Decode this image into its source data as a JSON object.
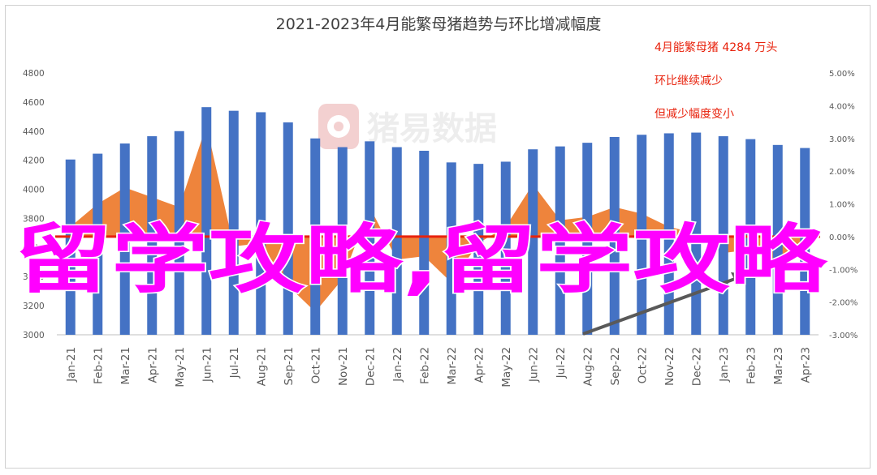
{
  "chart_data": {
    "type": "bar",
    "title": "2021-2023年4月能繁母猪趋势与环比增减幅度",
    "categories": [
      "Jan-21",
      "Feb-21",
      "Mar-21",
      "Apr-21",
      "May-21",
      "Jun-21",
      "Jul-21",
      "Aug-21",
      "Sep-21",
      "Oct-21",
      "Nov-21",
      "Dec-21",
      "Jan-22",
      "Feb-22",
      "Mar-22",
      "Apr-22",
      "May-22",
      "Jun-22",
      "Jul-22",
      "Aug-22",
      "Sep-22",
      "Oct-22",
      "Nov-22",
      "Dec-22",
      "Jan-23",
      "Feb-23",
      "Mar-23",
      "Apr-23"
    ],
    "series": [
      {
        "values": [
          4205,
          4245,
          4315,
          4365,
          4400,
          4565,
          4540,
          4530,
          4460,
          4350,
          4290,
          4330,
          4290,
          4265,
          4185,
          4175,
          4190,
          4275,
          4295,
          4320,
          4360,
          4375,
          4385,
          4390,
          4365,
          4345,
          4305,
          4284
        ],
        "axis": "left",
        "kind": "bar",
        "color": "#4472c4"
      },
      {
        "values": [
          0.3,
          1.0,
          1.5,
          1.2,
          0.9,
          3.4,
          -0.3,
          -0.2,
          -1.5,
          -2.3,
          -1.3,
          0.9,
          -0.7,
          -0.6,
          -1.4,
          -0.2,
          0.3,
          1.6,
          0.5,
          0.6,
          0.9,
          0.7,
          0.3,
          0.1,
          -0.5,
          -0.4,
          -0.9,
          -0.4
        ],
        "axis": "right",
        "kind": "area",
        "color": "#ed7d31"
      }
    ],
    "y_left": {
      "min": 3000,
      "max": 4800,
      "ticks": [
        "3000",
        "3200",
        "3400",
        "3600",
        "3800",
        "4000",
        "4200",
        "4400",
        "4600",
        "4800"
      ]
    },
    "y_right": {
      "min": -3,
      "max": 5,
      "ticks": [
        "-3.00%",
        "-2.00%",
        "-1.00%",
        "0.00%",
        "1.00%",
        "2.00%",
        "3.00%",
        "4.00%",
        "5.00%"
      ]
    },
    "annotations": [
      "4月能繁母猪 4284 万头",
      "环比继续减少",
      "但减少幅度变小"
    ],
    "watermark": "猪易数据",
    "colors": {
      "bars": "#4472c4",
      "area": "#ed7d31",
      "zero_line": "#e8220c",
      "arrow": "#595959",
      "annotation": "#e8220c"
    }
  },
  "overlay_text": "留学攻略,留学攻略"
}
